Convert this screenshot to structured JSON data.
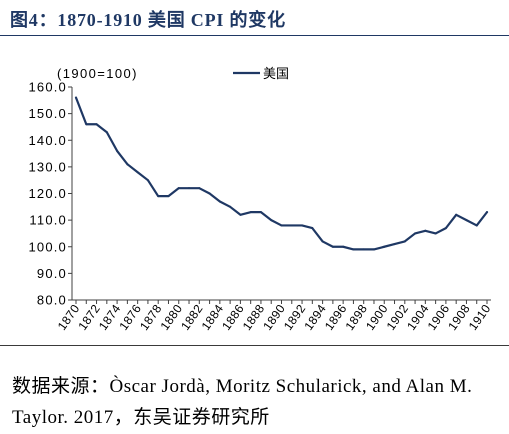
{
  "title": "图4：1870-1910 美国 CPI 的变化",
  "source": {
    "line1": "数据来源：Òscar Jordà, Moritz Schularick, and Alan M.",
    "line2": "Taylor. 2017，东吴证券研究所"
  },
  "colors": {
    "title": "#1F3864",
    "axis": "#404040"
  },
  "chart_data": {
    "type": "line",
    "annotation": "(1900=100)",
    "x": [
      1870,
      1871,
      1872,
      1873,
      1874,
      1875,
      1876,
      1877,
      1878,
      1879,
      1880,
      1881,
      1882,
      1883,
      1884,
      1885,
      1886,
      1887,
      1888,
      1889,
      1890,
      1891,
      1892,
      1893,
      1894,
      1895,
      1896,
      1897,
      1898,
      1899,
      1900,
      1901,
      1902,
      1903,
      1904,
      1905,
      1906,
      1907,
      1908,
      1909,
      1910
    ],
    "x_tick_labels": [
      "1870",
      "1872",
      "1874",
      "1876",
      "1878",
      "1880",
      "1882",
      "1884",
      "1886",
      "1888",
      "1890",
      "1892",
      "1894",
      "1896",
      "1898",
      "1900",
      "1902",
      "1904",
      "1906",
      "1908",
      "1910"
    ],
    "y_ticks": [
      80,
      90,
      100,
      110,
      120,
      130,
      140,
      150,
      160
    ],
    "y_tick_labels": [
      "80.0",
      "90.0",
      "100.0",
      "110.0",
      "120.0",
      "130.0",
      "140.0",
      "150.0",
      "160.0"
    ],
    "ylim": [
      80,
      160
    ],
    "grid": false,
    "legend_position": "top",
    "series": [
      {
        "name": "美国",
        "color": "#1F3864",
        "values": [
          156,
          146,
          146,
          143,
          136,
          131,
          128,
          125,
          119,
          119,
          122,
          122,
          122,
          120,
          117,
          115,
          112,
          113,
          113,
          110,
          108,
          108,
          108,
          107,
          102,
          100,
          100,
          99,
          99,
          99,
          100,
          101,
          102,
          105,
          106,
          105,
          107,
          112,
          110,
          108,
          113
        ]
      }
    ]
  }
}
